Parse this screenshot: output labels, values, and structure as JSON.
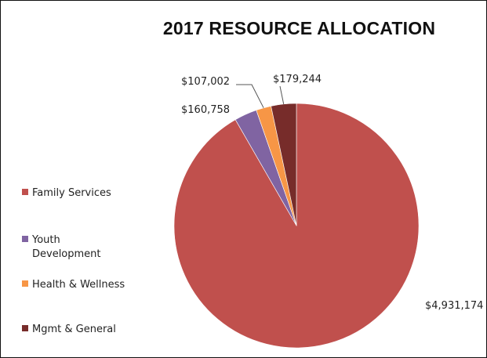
{
  "chart_data": {
    "type": "pie",
    "title": "2017 RESOURCE ALLOCATION",
    "start_angle_deg": 0,
    "direction": "clockwise",
    "legend_position": "left",
    "slices": [
      {
        "label": "Family Services",
        "legend_lines": [
          "Family Services"
        ],
        "value": 4931174,
        "value_label": "$4,931,174",
        "color": "#c0504d"
      },
      {
        "label": "Youth Development",
        "legend_lines": [
          "Youth",
          "Development"
        ],
        "value": 160758,
        "value_label": "$160,758",
        "color": "#8064a2"
      },
      {
        "label": "Health & Wellness",
        "legend_lines": [
          "Health & Wellness"
        ],
        "value": 107002,
        "value_label": "$107,002",
        "color": "#f79646"
      },
      {
        "label": "Mgmt & General",
        "legend_lines": [
          "Mgmt & General"
        ],
        "value": 179244,
        "value_label": "$179,244",
        "color": "#772c2a"
      }
    ]
  }
}
